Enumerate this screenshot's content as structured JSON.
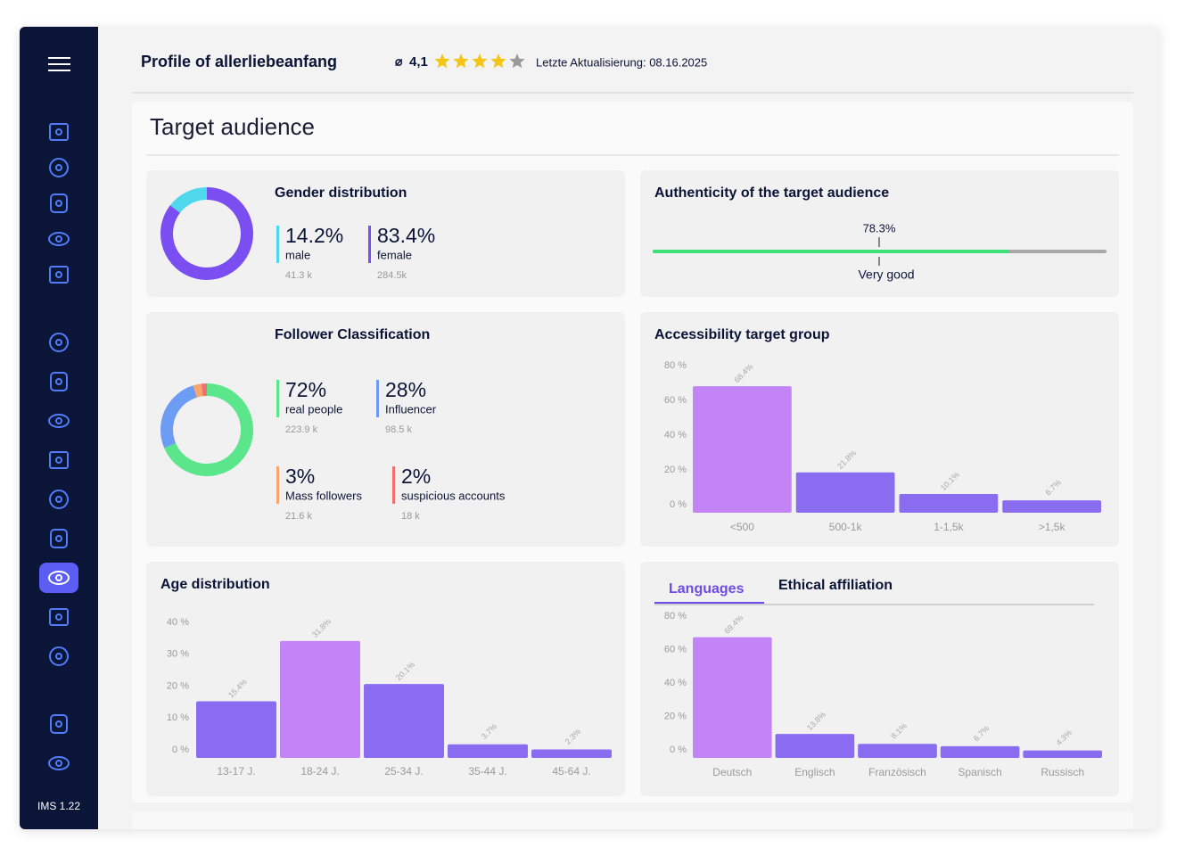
{
  "sidebar": {
    "version": "IMS 1.22"
  },
  "header": {
    "title": "Profile of allerliebeanfang",
    "rating_prefix": "⌀",
    "rating": "4,1",
    "stars": {
      "filled": 4,
      "total": 5
    },
    "last_update": "Letzte Aktualisierung: 08.16.2025"
  },
  "section_title": "Target audience",
  "gender": {
    "title": "Gender distribution",
    "values": [
      14.2,
      83.4
    ],
    "value_labels": [
      "14.2%",
      "83.4%"
    ],
    "labels": [
      "male",
      "female"
    ],
    "counts": [
      "41.3 k",
      "284.5k"
    ],
    "colors": [
      "#4fd8ec",
      "#7a4ef0"
    ]
  },
  "authenticity": {
    "title": "Authenticity of the target audience",
    "value": 78.3,
    "value_label": "78.3%",
    "xlim": [
      0,
      100
    ],
    "rating": "Very good",
    "color": "#3ee07a",
    "track_color": "#a8a8a8"
  },
  "followers": {
    "title": "Follower Classification",
    "values": [
      72,
      28,
      3,
      2
    ],
    "value_labels": [
      "72%",
      "28%",
      "3%",
      "2%"
    ],
    "labels": [
      "real people",
      "Influencer",
      "Mass followers",
      "suspicious accounts"
    ],
    "counts": [
      "223.9 k",
      "98.5 k",
      "21.6 k",
      "18 k"
    ],
    "colors": [
      "#5ce68c",
      "#6d9cf5",
      "#f7a56b",
      "#f07070"
    ]
  },
  "languages_tabs": {
    "items": [
      "Languages",
      "Ethical affiliation"
    ],
    "active": 0
  },
  "chart_data": [
    {
      "type": "bar",
      "title": "Accessibility target group",
      "categories": [
        "<500",
        "500-1k",
        "1-1,5k",
        ">1,5k"
      ],
      "values": [
        68.4,
        21.8,
        10.1,
        6.7
      ],
      "value_labels": [
        "68.4%",
        "21.8%",
        "10.1%",
        "6.7%"
      ],
      "colors": [
        "#c384f7",
        "#8a6cf0",
        "#8a6cf0",
        "#8a6cf0"
      ],
      "ylim": [
        0,
        80
      ],
      "yticks": [
        {
          "value": 0,
          "label": "0 %"
        },
        {
          "value": 20,
          "label": "20 %"
        },
        {
          "value": 40,
          "label": "40 %"
        },
        {
          "value": 60,
          "label": "60 %"
        },
        {
          "value": 80,
          "label": "80 %"
        }
      ]
    },
    {
      "type": "bar",
      "title": "Age distribution",
      "categories": [
        "13-17 J.",
        "18-24 J.",
        "25-34 J.",
        "35-44 J.",
        "45-64 J."
      ],
      "values": [
        15.4,
        31.8,
        20.1,
        3.7,
        2.3
      ],
      "value_labels": [
        "15.4%",
        "31.8%",
        "20.1%",
        "3.7%",
        "2.3%"
      ],
      "colors": [
        "#8a6cf0",
        "#c384f7",
        "#8a6cf0",
        "#8a6cf0",
        "#8a6cf0"
      ],
      "ylim": [
        0,
        40
      ],
      "yticks": [
        {
          "value": 0,
          "label": "0 %"
        },
        {
          "value": 10,
          "label": "10 %"
        },
        {
          "value": 20,
          "label": "20 %"
        },
        {
          "value": 30,
          "label": "30 %"
        },
        {
          "value": 40,
          "label": "40 %"
        }
      ]
    },
    {
      "type": "bar",
      "categories": [
        "Deutsch",
        "Englisch",
        "Französisch",
        "Spanisch",
        "Russisch"
      ],
      "values": [
        69.4,
        13.8,
        8.1,
        6.7,
        4.3
      ],
      "value_labels": [
        "69.4%",
        "13.8%",
        "8.1%",
        "6.7%",
        "4.3%"
      ],
      "colors": [
        "#c384f7",
        "#8a6cf0",
        "#8a6cf0",
        "#8a6cf0",
        "#8a6cf0"
      ],
      "ylim": [
        0,
        80
      ],
      "yticks": [
        {
          "value": 0,
          "label": "0 %"
        },
        {
          "value": 20,
          "label": "20 %"
        },
        {
          "value": 40,
          "label": "40 %"
        },
        {
          "value": 60,
          "label": "60 %"
        },
        {
          "value": 80,
          "label": "80 %"
        }
      ]
    }
  ]
}
